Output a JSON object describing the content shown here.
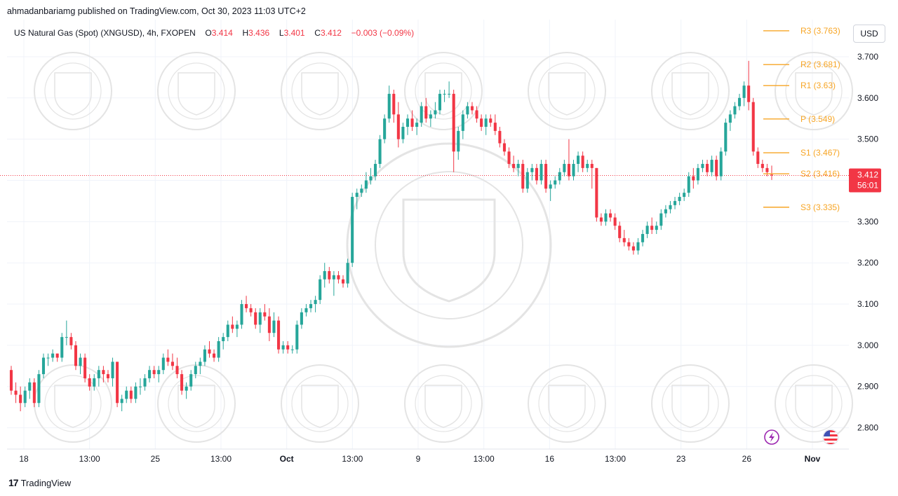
{
  "header": {
    "publisher_line": "ahmadanbariamg published on TradingView.com, Oct 30, 2023 11:03 UTC+2"
  },
  "legend": {
    "symbol": "US Natural Gas (Spot) (XNGUSD), 4h, FXOPEN",
    "o_label": "O",
    "o_value": "3.414",
    "h_label": "H",
    "h_value": "3.436",
    "l_label": "L",
    "l_value": "3.401",
    "c_label": "C",
    "c_value": "3.412",
    "change": "−0.003 (−0.09%)"
  },
  "currency_button": "USD",
  "footer": {
    "brand": "TradingView",
    "logo": "17"
  },
  "colors": {
    "up": "#26a69a",
    "down": "#f23645",
    "pivot": "#f7a525",
    "price_tag": "#f23645",
    "grid": "#f0f3fa",
    "axis_text": "#131722",
    "watermark": "#e4e4e4",
    "icon_purple": "#9c27b0",
    "icon_flag": "#f23645"
  },
  "icons": {
    "lightning": "lightning-icon",
    "flag": "us-flag-icon"
  },
  "chart_data": {
    "type": "candlestick",
    "title": "US Natural Gas (Spot) (XNGUSD), 4h, FXOPEN",
    "ylim": [
      2.75,
      3.79
    ],
    "y_ticks": [
      "3.700",
      "3.600",
      "3.500",
      "3.400",
      "3.300",
      "3.200",
      "3.100",
      "3.000",
      "2.900",
      "2.800"
    ],
    "x_ticks": [
      "18",
      "13:00",
      "25",
      "13:00",
      "Oct",
      "13:00",
      "9",
      "13:00",
      "16",
      "13:00",
      "23",
      "26",
      "Nov"
    ],
    "last_price": "3.412",
    "countdown": "56:01",
    "pivot_levels": [
      {
        "name": "R3",
        "value": 3.763,
        "label": "R3 (3.763)"
      },
      {
        "name": "R2",
        "value": 3.681,
        "label": "R2 (3.681)"
      },
      {
        "name": "R1",
        "value": 3.63,
        "label": "R1 (3.63)"
      },
      {
        "name": "P",
        "value": 3.549,
        "label": "P (3.549)"
      },
      {
        "name": "S1",
        "value": 3.467,
        "label": "S1 (3.467)"
      },
      {
        "name": "S2",
        "value": 3.416,
        "label": "S2 (3.416)"
      },
      {
        "name": "S3",
        "value": 3.335,
        "label": "S3 (3.335)"
      }
    ],
    "candles": [
      [
        2.94,
        2.95,
        2.88,
        2.89
      ],
      [
        2.89,
        2.91,
        2.86,
        2.88
      ],
      [
        2.88,
        2.9,
        2.84,
        2.86
      ],
      [
        2.86,
        2.9,
        2.85,
        2.89
      ],
      [
        2.89,
        2.92,
        2.87,
        2.91
      ],
      [
        2.91,
        2.92,
        2.85,
        2.86
      ],
      [
        2.86,
        2.94,
        2.85,
        2.93
      ],
      [
        2.93,
        2.98,
        2.92,
        2.97
      ],
      [
        2.97,
        2.98,
        2.95,
        2.97
      ],
      [
        2.97,
        2.99,
        2.96,
        2.98
      ],
      [
        2.98,
        2.98,
        2.96,
        2.97
      ],
      [
        2.97,
        3.03,
        2.96,
        3.02
      ],
      [
        3.02,
        3.06,
        3.0,
        3.02
      ],
      [
        3.02,
        3.03,
        2.99,
        3.0
      ],
      [
        3.0,
        3.01,
        2.94,
        2.95
      ],
      [
        2.95,
        2.98,
        2.93,
        2.97
      ],
      [
        2.97,
        2.98,
        2.91,
        2.92
      ],
      [
        2.92,
        2.93,
        2.89,
        2.9
      ],
      [
        2.9,
        2.93,
        2.89,
        2.92
      ],
      [
        2.92,
        2.95,
        2.9,
        2.94
      ],
      [
        2.94,
        2.95,
        2.91,
        2.93
      ],
      [
        2.93,
        2.94,
        2.91,
        2.92
      ],
      [
        2.92,
        2.97,
        2.9,
        2.96
      ],
      [
        2.96,
        2.96,
        2.85,
        2.86
      ],
      [
        2.86,
        2.88,
        2.84,
        2.87
      ],
      [
        2.87,
        2.9,
        2.86,
        2.89
      ],
      [
        2.89,
        2.9,
        2.86,
        2.87
      ],
      [
        2.87,
        2.91,
        2.86,
        2.9
      ],
      [
        2.9,
        2.92,
        2.88,
        2.9
      ],
      [
        2.9,
        2.93,
        2.89,
        2.92
      ],
      [
        2.92,
        2.95,
        2.91,
        2.94
      ],
      [
        2.94,
        2.95,
        2.92,
        2.93
      ],
      [
        2.93,
        2.95,
        2.91,
        2.94
      ],
      [
        2.94,
        2.98,
        2.93,
        2.97
      ],
      [
        2.97,
        2.99,
        2.95,
        2.96
      ],
      [
        2.96,
        2.98,
        2.94,
        2.95
      ],
      [
        2.95,
        2.97,
        2.92,
        2.93
      ],
      [
        2.93,
        2.94,
        2.88,
        2.89
      ],
      [
        2.89,
        2.91,
        2.87,
        2.9
      ],
      [
        2.9,
        2.94,
        2.89,
        2.93
      ],
      [
        2.93,
        2.96,
        2.92,
        2.95
      ],
      [
        2.95,
        2.97,
        2.93,
        2.96
      ],
      [
        2.96,
        3.0,
        2.95,
        2.99
      ],
      [
        2.99,
        3.01,
        2.97,
        2.98
      ],
      [
        2.98,
        2.99,
        2.96,
        2.97
      ],
      [
        2.97,
        3.02,
        2.96,
        3.01
      ],
      [
        3.01,
        3.03,
        2.99,
        3.02
      ],
      [
        3.02,
        3.06,
        3.01,
        3.05
      ],
      [
        3.05,
        3.07,
        3.03,
        3.04
      ],
      [
        3.04,
        3.06,
        3.02,
        3.05
      ],
      [
        3.05,
        3.11,
        3.04,
        3.1
      ],
      [
        3.1,
        3.12,
        3.08,
        3.09
      ],
      [
        3.09,
        3.1,
        3.07,
        3.08
      ],
      [
        3.08,
        3.09,
        3.04,
        3.05
      ],
      [
        3.05,
        3.09,
        3.03,
        3.08
      ],
      [
        3.08,
        3.1,
        3.06,
        3.07
      ],
      [
        3.07,
        3.09,
        3.01,
        3.03
      ],
      [
        3.03,
        3.08,
        3.02,
        3.06
      ],
      [
        3.06,
        3.07,
        2.98,
        2.99
      ],
      [
        2.99,
        3.01,
        2.98,
        3.0
      ],
      [
        3.0,
        3.01,
        2.98,
        2.99
      ],
      [
        2.99,
        3.0,
        2.98,
        2.99
      ],
      [
        2.99,
        3.06,
        2.98,
        3.05
      ],
      [
        3.05,
        3.09,
        3.04,
        3.08
      ],
      [
        3.08,
        3.1,
        3.07,
        3.09
      ],
      [
        3.09,
        3.11,
        3.08,
        3.1
      ],
      [
        3.1,
        3.12,
        3.08,
        3.11
      ],
      [
        3.11,
        3.17,
        3.1,
        3.16
      ],
      [
        3.16,
        3.2,
        3.14,
        3.18
      ],
      [
        3.18,
        3.19,
        3.15,
        3.16
      ],
      [
        3.16,
        3.18,
        3.12,
        3.17
      ],
      [
        3.17,
        3.18,
        3.15,
        3.16
      ],
      [
        3.16,
        3.17,
        3.14,
        3.15
      ],
      [
        3.15,
        3.21,
        3.14,
        3.2
      ],
      [
        3.2,
        3.37,
        3.19,
        3.36
      ],
      [
        3.36,
        3.38,
        3.33,
        3.37
      ],
      [
        3.37,
        3.39,
        3.36,
        3.38
      ],
      [
        3.38,
        3.42,
        3.37,
        3.4
      ],
      [
        3.4,
        3.43,
        3.39,
        3.41
      ],
      [
        3.41,
        3.45,
        3.4,
        3.44
      ],
      [
        3.44,
        3.51,
        3.43,
        3.5
      ],
      [
        3.5,
        3.56,
        3.49,
        3.55
      ],
      [
        3.55,
        3.63,
        3.54,
        3.61
      ],
      [
        3.61,
        3.62,
        3.54,
        3.56
      ],
      [
        3.56,
        3.59,
        3.48,
        3.5
      ],
      [
        3.5,
        3.54,
        3.49,
        3.53
      ],
      [
        3.53,
        3.56,
        3.51,
        3.55
      ],
      [
        3.55,
        3.57,
        3.52,
        3.53
      ],
      [
        3.53,
        3.55,
        3.51,
        3.54
      ],
      [
        3.54,
        3.59,
        3.53,
        3.58
      ],
      [
        3.58,
        3.6,
        3.54,
        3.55
      ],
      [
        3.55,
        3.57,
        3.53,
        3.56
      ],
      [
        3.56,
        3.59,
        3.55,
        3.57
      ],
      [
        3.57,
        3.62,
        3.56,
        3.61
      ],
      [
        3.61,
        3.62,
        3.59,
        3.61
      ],
      [
        3.61,
        3.64,
        3.6,
        3.61
      ],
      [
        3.61,
        3.62,
        3.42,
        3.47
      ],
      [
        3.47,
        3.53,
        3.45,
        3.52
      ],
      [
        3.52,
        3.57,
        3.5,
        3.56
      ],
      [
        3.56,
        3.59,
        3.55,
        3.58
      ],
      [
        3.58,
        3.59,
        3.56,
        3.57
      ],
      [
        3.57,
        3.58,
        3.54,
        3.55
      ],
      [
        3.55,
        3.56,
        3.52,
        3.53
      ],
      [
        3.53,
        3.56,
        3.51,
        3.55
      ],
      [
        3.55,
        3.56,
        3.53,
        3.54
      ],
      [
        3.54,
        3.56,
        3.51,
        3.52
      ],
      [
        3.52,
        3.53,
        3.48,
        3.49
      ],
      [
        3.49,
        3.5,
        3.46,
        3.47
      ],
      [
        3.47,
        3.48,
        3.43,
        3.44
      ],
      [
        3.44,
        3.46,
        3.42,
        3.43
      ],
      [
        3.43,
        3.45,
        3.41,
        3.44
      ],
      [
        3.44,
        3.45,
        3.37,
        3.38
      ],
      [
        3.38,
        3.43,
        3.37,
        3.42
      ],
      [
        3.42,
        3.44,
        3.4,
        3.43
      ],
      [
        3.43,
        3.44,
        3.39,
        3.4
      ],
      [
        3.4,
        3.45,
        3.39,
        3.44
      ],
      [
        3.44,
        3.45,
        3.37,
        3.38
      ],
      [
        3.38,
        3.4,
        3.35,
        3.39
      ],
      [
        3.39,
        3.41,
        3.38,
        3.4
      ],
      [
        3.4,
        3.43,
        3.39,
        3.42
      ],
      [
        3.42,
        3.45,
        3.41,
        3.44
      ],
      [
        3.44,
        3.5,
        3.4,
        3.41
      ],
      [
        3.41,
        3.45,
        3.4,
        3.44
      ],
      [
        3.44,
        3.47,
        3.42,
        3.46
      ],
      [
        3.46,
        3.47,
        3.42,
        3.43
      ],
      [
        3.43,
        3.45,
        3.42,
        3.44
      ],
      [
        3.44,
        3.45,
        3.38,
        3.43
      ],
      [
        3.43,
        3.43,
        3.3,
        3.31
      ],
      [
        3.31,
        3.32,
        3.29,
        3.3
      ],
      [
        3.3,
        3.33,
        3.29,
        3.32
      ],
      [
        3.32,
        3.33,
        3.3,
        3.31
      ],
      [
        3.31,
        3.32,
        3.28,
        3.29
      ],
      [
        3.29,
        3.3,
        3.25,
        3.26
      ],
      [
        3.26,
        3.28,
        3.24,
        3.25
      ],
      [
        3.25,
        3.26,
        3.23,
        3.24
      ],
      [
        3.24,
        3.25,
        3.22,
        3.23
      ],
      [
        3.23,
        3.26,
        3.22,
        3.25
      ],
      [
        3.25,
        3.28,
        3.24,
        3.27
      ],
      [
        3.27,
        3.3,
        3.26,
        3.29
      ],
      [
        3.29,
        3.31,
        3.27,
        3.28
      ],
      [
        3.28,
        3.3,
        3.27,
        3.29
      ],
      [
        3.29,
        3.33,
        3.28,
        3.32
      ],
      [
        3.32,
        3.34,
        3.31,
        3.33
      ],
      [
        3.33,
        3.35,
        3.32,
        3.34
      ],
      [
        3.34,
        3.36,
        3.33,
        3.35
      ],
      [
        3.35,
        3.37,
        3.34,
        3.36
      ],
      [
        3.36,
        3.38,
        3.35,
        3.37
      ],
      [
        3.37,
        3.42,
        3.36,
        3.41
      ],
      [
        3.41,
        3.43,
        3.38,
        3.4
      ],
      [
        3.4,
        3.44,
        3.39,
        3.43
      ],
      [
        3.43,
        3.45,
        3.42,
        3.44
      ],
      [
        3.44,
        3.45,
        3.41,
        3.42
      ],
      [
        3.42,
        3.46,
        3.41,
        3.45
      ],
      [
        3.45,
        3.46,
        3.4,
        3.41
      ],
      [
        3.41,
        3.48,
        3.4,
        3.47
      ],
      [
        3.47,
        3.55,
        3.46,
        3.54
      ],
      [
        3.54,
        3.57,
        3.52,
        3.56
      ],
      [
        3.56,
        3.59,
        3.55,
        3.58
      ],
      [
        3.58,
        3.61,
        3.57,
        3.6
      ],
      [
        3.6,
        3.64,
        3.58,
        3.63
      ],
      [
        3.63,
        3.69,
        3.57,
        3.59
      ],
      [
        3.59,
        3.6,
        3.46,
        3.47
      ],
      [
        3.47,
        3.48,
        3.43,
        3.44
      ],
      [
        3.44,
        3.45,
        3.42,
        3.43
      ],
      [
        3.43,
        3.44,
        3.41,
        3.42
      ],
      [
        3.414,
        3.436,
        3.401,
        3.412
      ]
    ]
  }
}
